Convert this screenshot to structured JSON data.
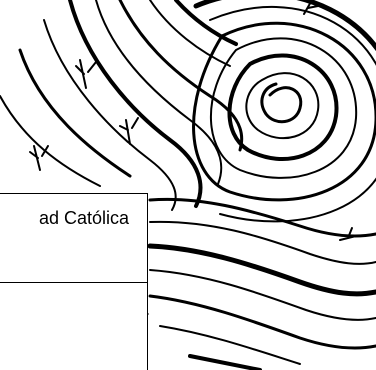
{
  "illustration": {
    "icon": "ink-swirl-illustration-icon",
    "ink_color": "#000000",
    "paper_color": "#ffffff"
  },
  "frame": {
    "caption": "ad Católica"
  }
}
